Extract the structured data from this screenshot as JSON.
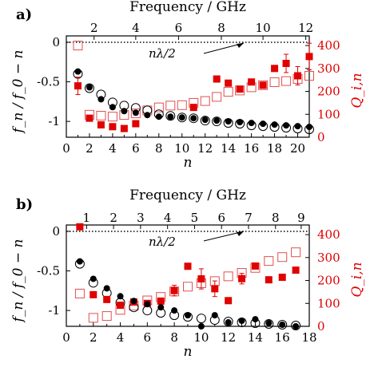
{
  "chart_data": [
    {
      "type": "scatter",
      "panel_label": "a)",
      "top_axis_label": "Frequency / GHz",
      "top_ticks": [
        "2",
        "4",
        "6",
        "8",
        "10",
        "12"
      ],
      "top_tick_n": [
        2.4,
        6.0,
        9.7,
        13.4,
        17.0,
        20.7
      ],
      "xlabel": "n",
      "xticks": [
        0,
        2,
        4,
        6,
        8,
        10,
        12,
        14,
        16,
        18,
        20
      ],
      "xlim": [
        0,
        21
      ],
      "ylabel": "f_n / f_0 − n",
      "yticks": [
        0,
        -0.5,
        -1
      ],
      "ytick_labels": [
        "0",
        "-0.5",
        "-1"
      ],
      "ylim": [
        -1.2,
        0.08
      ],
      "y2label": "Q_i,n",
      "y2ticks": [
        0,
        100,
        200,
        300,
        400
      ],
      "y2lim": [
        0,
        442
      ],
      "annotation": "nλ/2",
      "series": [
        {
          "marker": "filled-circle-black",
          "x": [
            1,
            2,
            3,
            4,
            5,
            6,
            7,
            8,
            9,
            10,
            11,
            12,
            13,
            14,
            15,
            16,
            17,
            18,
            19,
            20,
            21
          ],
          "values": [
            -0.37,
            -0.57,
            -0.72,
            -0.82,
            -0.87,
            -0.89,
            -0.92,
            -0.94,
            -0.94,
            -0.95,
            -0.96,
            -0.98,
            -0.99,
            -1.0,
            -1.01,
            -1.02,
            -1.03,
            -1.04,
            -1.05,
            -1.06,
            -1.07
          ]
        },
        {
          "marker": "open-circle-black",
          "x": [
            1,
            2,
            3,
            4,
            5,
            6,
            7,
            8,
            9,
            10,
            11,
            12,
            13,
            14,
            15,
            16,
            17,
            18,
            19,
            20,
            21
          ],
          "values": [
            -0.4,
            -0.58,
            -0.66,
            -0.76,
            -0.8,
            -0.83,
            -0.86,
            -0.91,
            -0.93,
            -0.95,
            -0.96,
            -0.99,
            -1.0,
            -1.02,
            -1.03,
            -1.05,
            -1.06,
            -1.07,
            -1.08,
            -1.09,
            -1.1
          ]
        },
        {
          "marker": "filled-square-red",
          "axis": "right",
          "x": [
            1,
            2,
            3,
            4,
            5,
            6,
            11,
            13,
            14,
            15,
            16,
            17,
            18,
            19,
            20,
            21
          ],
          "values": [
            224,
            83,
            54,
            46,
            38,
            59,
            130,
            254,
            236,
            210,
            241,
            227,
            300,
            322,
            268,
            352
          ],
          "err": [
            38,
            0,
            0,
            0,
            0,
            0,
            0,
            0,
            0,
            0,
            0,
            0,
            0,
            40,
            40,
            58
          ]
        },
        {
          "marker": "open-square-red",
          "axis": "right",
          "x": [
            1,
            2,
            3,
            4,
            5,
            6,
            7,
            8,
            9,
            10,
            11,
            12,
            13,
            14,
            15,
            16,
            17,
            18,
            19,
            20,
            21
          ],
          "values": [
            400,
            98,
            94,
            90,
            97,
            104,
            117,
            130,
            138,
            140,
            150,
            158,
            176,
            198,
            204,
            218,
            227,
            240,
            245,
            254,
            268
          ]
        }
      ]
    },
    {
      "type": "scatter",
      "panel_label": "b)",
      "top_axis_label": "Frequency / GHz",
      "top_ticks": [
        "1",
        "2",
        "3",
        "4",
        "5",
        "6",
        "7",
        "8",
        "9"
      ],
      "top_tick_n": [
        1.5,
        3.5,
        5.5,
        7.5,
        9.5,
        11.5,
        13.5,
        15.5,
        17.4
      ],
      "xlabel": "n",
      "xticks": [
        0,
        2,
        4,
        6,
        8,
        10,
        12,
        14,
        16,
        18
      ],
      "xlim": [
        0,
        18
      ],
      "ylabel": "f_n / f_0 − n",
      "yticks": [
        0,
        -0.5,
        -1
      ],
      "ytick_labels": [
        "0",
        "-0.5",
        "-1"
      ],
      "ylim": [
        -1.2,
        0.08
      ],
      "y2label": "Q_i,n",
      "y2ticks": [
        0,
        100,
        200,
        300,
        400
      ],
      "y2lim": [
        0,
        442
      ],
      "annotation": "nλ/2",
      "series": [
        {
          "marker": "filled-circle-black",
          "x": [
            1,
            2,
            3,
            4,
            5,
            6,
            7,
            8,
            9,
            10,
            11,
            12,
            13,
            14,
            15,
            16,
            17
          ],
          "values": [
            -0.38,
            -0.6,
            -0.72,
            -0.82,
            -0.88,
            -0.92,
            -0.96,
            -1.0,
            -1.06,
            -1.2,
            -1.06,
            -1.15,
            -1.13,
            -1.11,
            -1.16,
            -1.18,
            -1.2
          ]
        },
        {
          "marker": "open-circle-black",
          "x": [
            1,
            2,
            3,
            4,
            5,
            6,
            7,
            8,
            9,
            10,
            11,
            12,
            13,
            14,
            15,
            16,
            17
          ],
          "values": [
            -0.41,
            -0.65,
            -0.78,
            -0.9,
            -0.96,
            -1.0,
            -1.03,
            -1.06,
            -1.08,
            -1.1,
            -1.12,
            -1.14,
            -1.15,
            -1.16,
            -1.17,
            -1.18,
            -1.19
          ]
        },
        {
          "marker": "filled-square-red",
          "axis": "right",
          "x": [
            1,
            2,
            3,
            4,
            5,
            6,
            7,
            8,
            9,
            10,
            11,
            12,
            13,
            14,
            15,
            16,
            17
          ],
          "values": [
            434,
            138,
            117,
            92,
            106,
            100,
            110,
            156,
            262,
            207,
            164,
            112,
            208,
            263,
            203,
            214,
            245
          ],
          "err": [
            0,
            0,
            0,
            0,
            0,
            0,
            0,
            23,
            0,
            44,
            34,
            0,
            23,
            0,
            0,
            0,
            0
          ]
        },
        {
          "marker": "open-square-red",
          "axis": "right",
          "x": [
            1,
            2,
            3,
            4,
            5,
            6,
            7,
            8,
            9,
            10,
            11,
            12,
            13,
            14,
            15,
            16,
            17
          ],
          "values": [
            143,
            37,
            45,
            72,
            90,
            113,
            128,
            152,
            173,
            188,
            197,
            218,
            233,
            255,
            285,
            302,
            323
          ]
        }
      ]
    }
  ]
}
